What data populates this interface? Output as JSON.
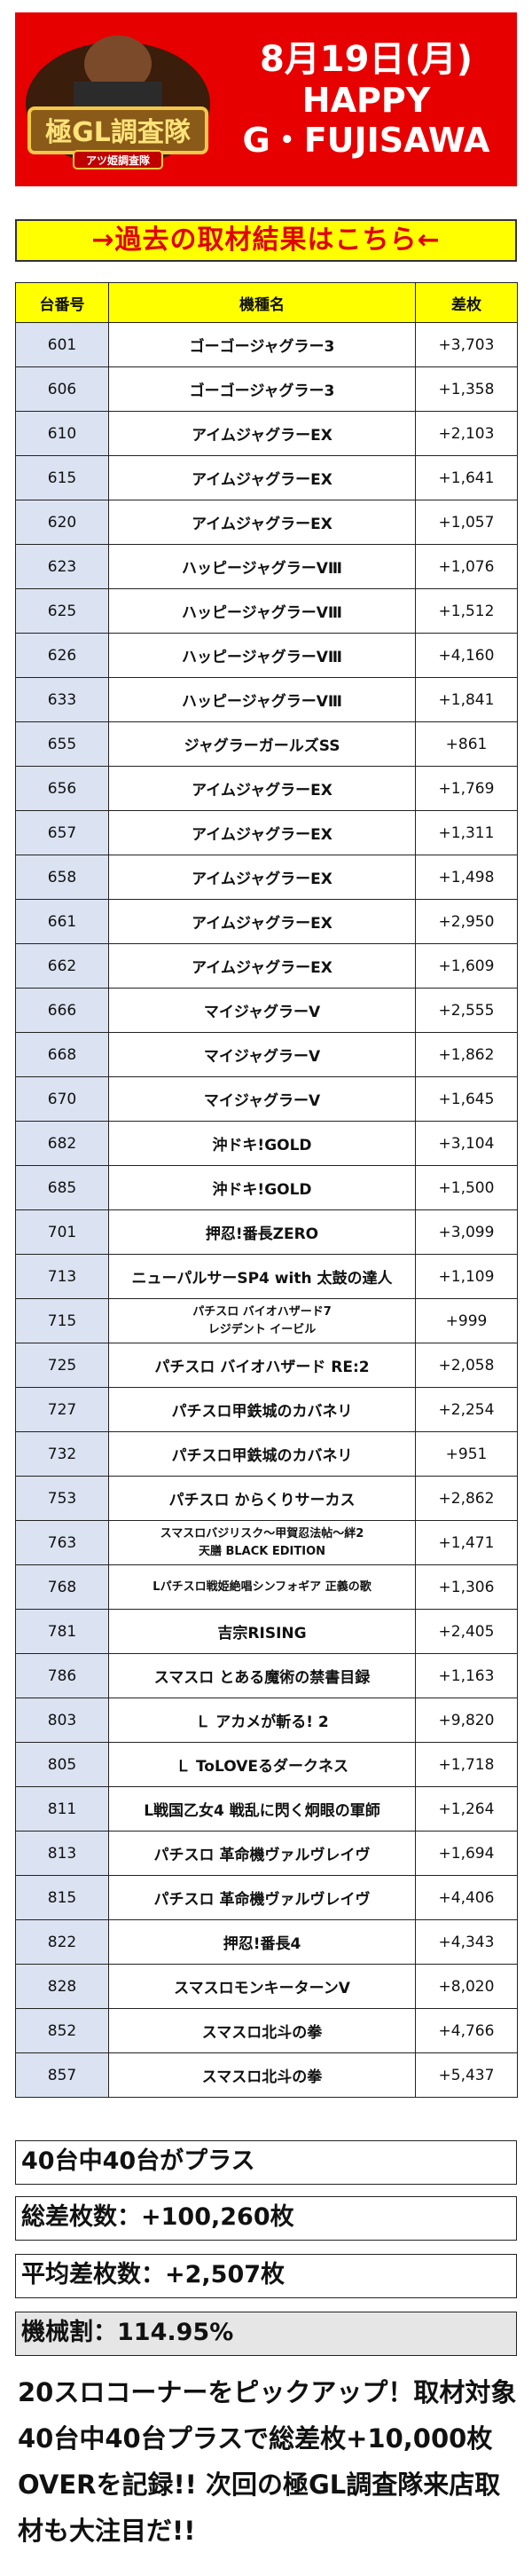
{
  "header": {
    "logo_text": "極GL調査隊",
    "logo_sub": "アツ姫調査隊",
    "date": "8月19日(月)",
    "line2": "HAPPY",
    "line3": "G・FUJISAWA"
  },
  "link_banner": "→過去の取材結果はこちら←",
  "table": {
    "headers": [
      "台番号",
      "機種名",
      "差枚"
    ],
    "rows": [
      {
        "num": "601",
        "machine": "ゴーゴージャグラー3",
        "diff": "+3,703"
      },
      {
        "num": "606",
        "machine": "ゴーゴージャグラー3",
        "diff": "+1,358"
      },
      {
        "num": "610",
        "machine": "アイムジャグラーEX",
        "diff": "+2,103"
      },
      {
        "num": "615",
        "machine": "アイムジャグラーEX",
        "diff": "+1,641"
      },
      {
        "num": "620",
        "machine": "アイムジャグラーEX",
        "diff": "+1,057"
      },
      {
        "num": "623",
        "machine": "ハッピージャグラーVⅢ",
        "diff": "+1,076"
      },
      {
        "num": "625",
        "machine": "ハッピージャグラーVⅢ",
        "diff": "+1,512"
      },
      {
        "num": "626",
        "machine": "ハッピージャグラーVⅢ",
        "diff": "+4,160"
      },
      {
        "num": "633",
        "machine": "ハッピージャグラーVⅢ",
        "diff": "+1,841"
      },
      {
        "num": "655",
        "machine": "ジャグラーガールズSS",
        "diff": "+861"
      },
      {
        "num": "656",
        "machine": "アイムジャグラーEX",
        "diff": "+1,769"
      },
      {
        "num": "657",
        "machine": "アイムジャグラーEX",
        "diff": "+1,311"
      },
      {
        "num": "658",
        "machine": "アイムジャグラーEX",
        "diff": "+1,498"
      },
      {
        "num": "661",
        "machine": "アイムジャグラーEX",
        "diff": "+2,950"
      },
      {
        "num": "662",
        "machine": "アイムジャグラーEX",
        "diff": "+1,609"
      },
      {
        "num": "666",
        "machine": "マイジャグラーV",
        "diff": "+2,555"
      },
      {
        "num": "668",
        "machine": "マイジャグラーV",
        "diff": "+1,862"
      },
      {
        "num": "670",
        "machine": "マイジャグラーV",
        "diff": "+1,645"
      },
      {
        "num": "682",
        "machine": "沖ドキ!GOLD",
        "diff": "+3,104"
      },
      {
        "num": "685",
        "machine": "沖ドキ!GOLD",
        "diff": "+1,500"
      },
      {
        "num": "701",
        "machine": "押忍!番長ZERO",
        "diff": "+3,099"
      },
      {
        "num": "713",
        "machine": "ニューパルサーSP4 with 太鼓の達人",
        "diff": "+1,109"
      },
      {
        "num": "715",
        "machine": "パチスロ バイオハザード7\nレジデント イービル",
        "diff": "+999",
        "small": true
      },
      {
        "num": "725",
        "machine": "パチスロ バイオハザード RE:2",
        "diff": "+2,058"
      },
      {
        "num": "727",
        "machine": "パチスロ甲鉄城のカバネリ",
        "diff": "+2,254"
      },
      {
        "num": "732",
        "machine": "パチスロ甲鉄城のカバネリ",
        "diff": "+951"
      },
      {
        "num": "753",
        "machine": "パチスロ からくりサーカス",
        "diff": "+2,862"
      },
      {
        "num": "763",
        "machine": "スマスロバジリスク～甲賀忍法帖～絆2\n天膳 BLACK EDITION",
        "diff": "+1,471",
        "small": true
      },
      {
        "num": "768",
        "machine": "Lパチスロ戦姫絶唱シンフォギア 正義の歌",
        "diff": "+1,306",
        "small": true
      },
      {
        "num": "781",
        "machine": "吉宗RISING",
        "diff": "+2,405"
      },
      {
        "num": "786",
        "machine": "スマスロ とある魔術の禁書目録",
        "diff": "+1,163"
      },
      {
        "num": "803",
        "machine": "Ｌ アカメが斬る! 2",
        "diff": "+9,820"
      },
      {
        "num": "805",
        "machine": "Ｌ ToLOVEるダークネス",
        "diff": "+1,718"
      },
      {
        "num": "811",
        "machine": "L戦国乙女4 戦乱に閃く炯眼の軍師",
        "diff": "+1,264"
      },
      {
        "num": "813",
        "machine": "パチスロ 革命機ヴァルヴレイヴ",
        "diff": "+1,694"
      },
      {
        "num": "815",
        "machine": "パチスロ 革命機ヴァルヴレイヴ",
        "diff": "+4,406"
      },
      {
        "num": "822",
        "machine": "押忍!番長4",
        "diff": "+4,343"
      },
      {
        "num": "828",
        "machine": "スマスロモンキーターンV",
        "diff": "+8,020"
      },
      {
        "num": "852",
        "machine": "スマスロ北斗の拳",
        "diff": "+4,766"
      },
      {
        "num": "857",
        "machine": "スマスロ北斗の拳",
        "diff": "+5,437"
      }
    ]
  },
  "summary": {
    "plus_count": "40台中40台がプラス",
    "total": "総差枚数：+100,260枚",
    "average": "平均差枚数：+2,507枚",
    "payout": "機械割：114.95%"
  },
  "comment": "20スロコーナーをピックアップ！取材対象40台中40台プラスで総差枚+10,000枚OVERを記録!! 次回の極GL調査隊来店取材も大注目だ!!",
  "colors": {
    "header_bg": "#e60000",
    "banner_bg": "#ffff00",
    "banner_text": "#e00000",
    "num_cell_bg": "#dbe2f1"
  }
}
